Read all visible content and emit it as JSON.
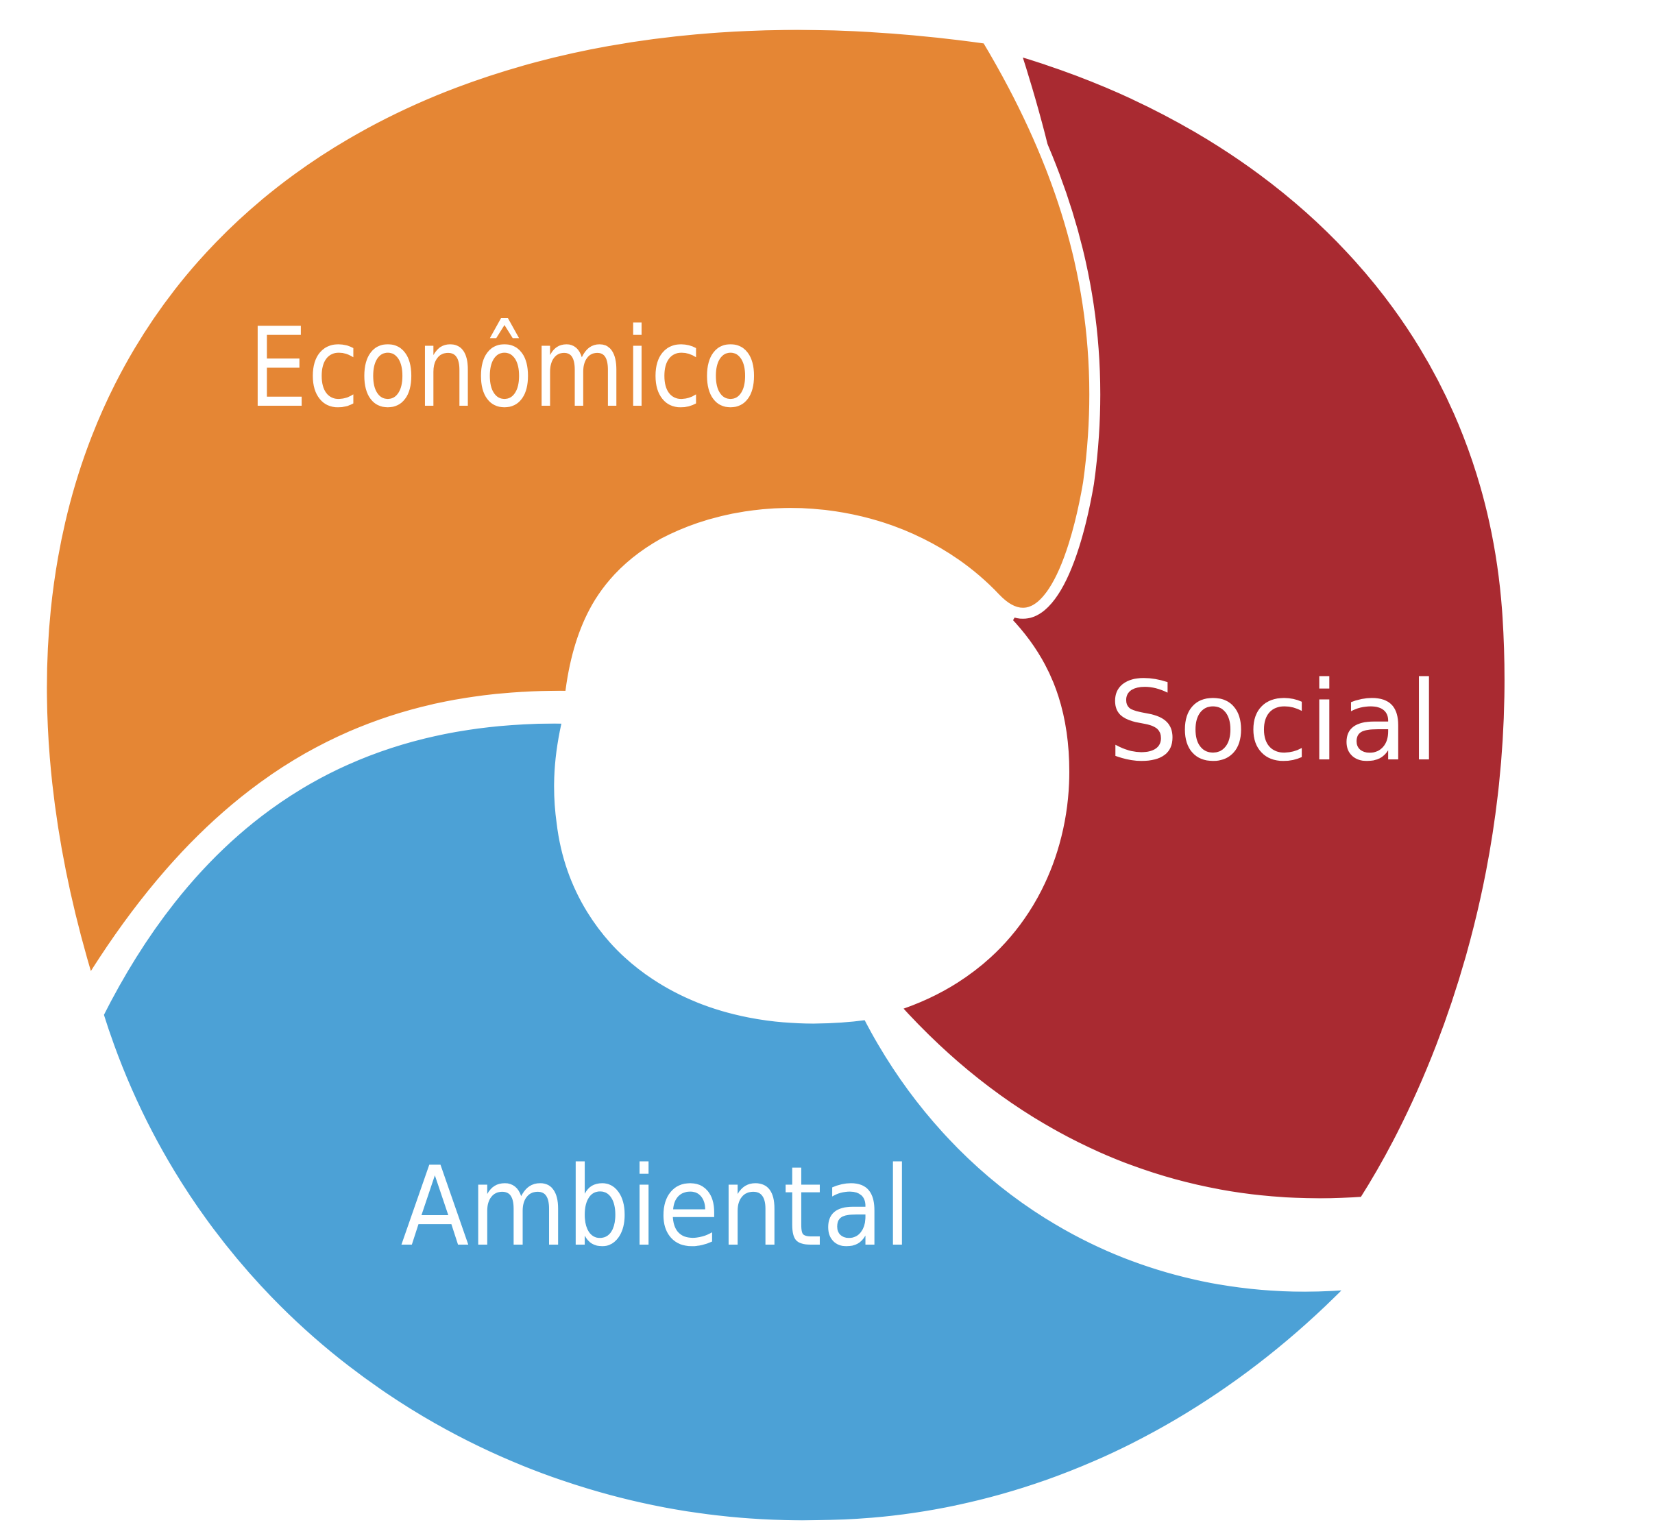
{
  "diagram": {
    "segments": [
      {
        "label": "Econômico",
        "color": "#E58634"
      },
      {
        "label": "Social",
        "color": "#A92A31"
      },
      {
        "label": "Ambiental",
        "color": "#4CA1D6"
      }
    ],
    "center_color": "#FFFFFF",
    "separator_color": "#FFFFFF"
  }
}
